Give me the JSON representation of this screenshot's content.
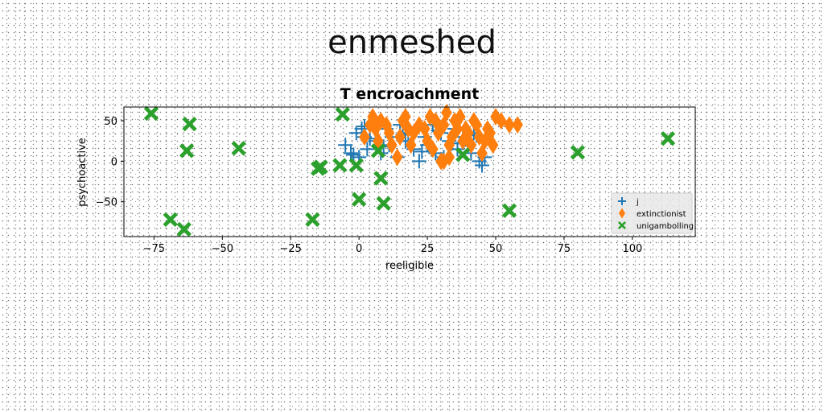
{
  "figure_title": "enmeshed",
  "chart_data": {
    "type": "scatter",
    "title": "T encroachment",
    "xlabel": "reeligible",
    "ylabel": "psychoactive",
    "xlim": [
      -86,
      123
    ],
    "ylim": [
      -93,
      67
    ],
    "xticks": [
      -75,
      -50,
      -25,
      0,
      25,
      50,
      75,
      100
    ],
    "yticks": [
      -50,
      0,
      50
    ],
    "grid": false,
    "legend": "lower-right",
    "series": [
      {
        "name": "j",
        "color": "#1f77b4",
        "marker": "plus",
        "x": [
          -5,
          -3,
          -1,
          0,
          1,
          2,
          3,
          5,
          6,
          8,
          10,
          11,
          12,
          14,
          15,
          17,
          18,
          20,
          21,
          22,
          24,
          25,
          27,
          28,
          30,
          31,
          33,
          35,
          36,
          38,
          40,
          41,
          42,
          44,
          45,
          46,
          -2,
          4,
          9,
          16,
          23,
          29,
          34,
          39,
          43,
          2
        ],
        "y": [
          20,
          10,
          35,
          5,
          40,
          30,
          15,
          45,
          25,
          10,
          40,
          20,
          30,
          5,
          45,
          25,
          35,
          15,
          40,
          0,
          30,
          20,
          45,
          10,
          35,
          5,
          25,
          40,
          15,
          30,
          20,
          10,
          35,
          0,
          -5,
          5,
          8,
          28,
          18,
          33,
          12,
          38,
          22,
          27,
          32,
          43
        ]
      },
      {
        "name": "extinctionist",
        "color": "#ff7f0e",
        "marker": "diamond",
        "x": [
          2,
          4,
          5,
          6,
          7,
          8,
          10,
          11,
          12,
          14,
          15,
          16,
          17,
          18,
          19,
          20,
          22,
          24,
          25,
          26,
          27,
          28,
          29,
          30,
          31,
          32,
          33,
          34,
          35,
          36,
          37,
          38,
          39,
          40,
          41,
          42,
          43,
          44,
          45,
          46,
          47,
          48,
          49,
          50,
          52,
          55,
          58,
          31,
          33,
          30
        ],
        "y": [
          30,
          45,
          55,
          40,
          25,
          50,
          45,
          35,
          20,
          5,
          30,
          50,
          55,
          40,
          20,
          35,
          45,
          40,
          25,
          55,
          15,
          50,
          35,
          0,
          45,
          60,
          20,
          30,
          50,
          40,
          55,
          25,
          40,
          35,
          20,
          50,
          45,
          30,
          10,
          25,
          40,
          35,
          20,
          55,
          50,
          45,
          45,
          0,
          5,
          0
        ]
      },
      {
        "name": "unigambolling",
        "color": "#2ca02c",
        "marker": "x",
        "x": [
          -76,
          -62,
          -63,
          -69,
          -64,
          -44,
          -17,
          -14,
          -15,
          -6,
          -7,
          -1,
          0,
          7,
          8,
          9,
          38,
          55,
          80,
          113
        ],
        "y": [
          59,
          46,
          13,
          -72,
          -84,
          16,
          -72,
          -7,
          -9,
          58,
          -5,
          -5,
          -47,
          13,
          -21,
          -52,
          8,
          -61,
          11,
          28
        ]
      }
    ]
  }
}
